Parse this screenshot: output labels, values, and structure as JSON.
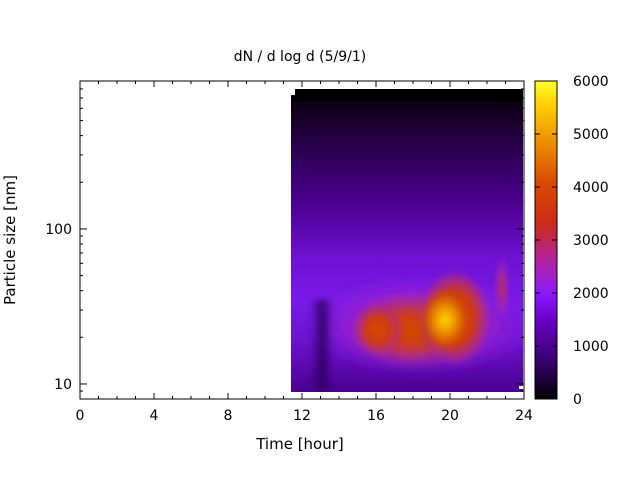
{
  "chart_data": {
    "type": "heatmap",
    "title": "dN / d log d (5/9/1)",
    "xlabel": "Time [hour]",
    "ylabel": "Particle size [nm]",
    "x_range": [
      0,
      24
    ],
    "x_ticks": [
      0,
      4,
      8,
      12,
      16,
      20,
      24
    ],
    "x_tick_labels": [
      "0",
      "4",
      "8",
      "12",
      "16",
      "20",
      "24"
    ],
    "y_scale": "log",
    "y_range": [
      8,
      900
    ],
    "y_ticks": [
      10,
      100
    ],
    "y_tick_labels": [
      "10",
      "100"
    ],
    "data_x_range": [
      11.5,
      24
    ],
    "data_y_range": [
      8.6,
      820
    ],
    "colorbar": {
      "range": [
        0,
        6000
      ],
      "ticks": [
        0,
        1000,
        2000,
        3000,
        4000,
        5000,
        6000
      ],
      "tick_labels": [
        "0",
        "1000",
        "2000",
        "3000",
        "4000",
        "5000",
        "6000"
      ],
      "palette": [
        "#000000",
        "#5a0096",
        "#8a1aff",
        "#c0247a",
        "#d43000",
        "#e87a00",
        "#ffd300",
        "#ffff30"
      ]
    },
    "features": [
      {
        "time": 19.5,
        "size_nm": 25,
        "value": 5200
      },
      {
        "time": 17.5,
        "size_nm": 26,
        "value": 3900
      },
      {
        "time": 15.5,
        "size_nm": 25,
        "value": 3500
      },
      {
        "time": 22.7,
        "size_nm": 42,
        "value": 3000
      },
      {
        "time": 13.2,
        "size_nm": 20,
        "value": 1000
      }
    ],
    "grid": false,
    "legend": "colorbar-right"
  }
}
